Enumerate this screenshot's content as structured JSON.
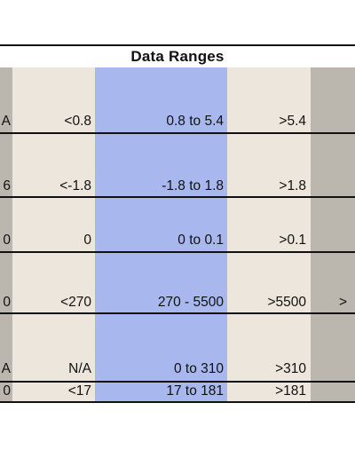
{
  "title": "Data Ranges",
  "colors": {
    "gray": "#bcb7ae",
    "beige": "#ede6dd",
    "blue": "#a8b8ee"
  },
  "rows": [
    {
      "left": "A",
      "low": "<0.8",
      "mid": "0.8 to 5.4",
      "high": ">5.4",
      "right": ""
    },
    {
      "left": "6",
      "low": "<-1.8",
      "mid": "-1.8 to 1.8",
      "high": ">1.8",
      "right": ""
    },
    {
      "left": "0",
      "low": "0",
      "mid": "0 to 0.1",
      "high": ">0.1",
      "right": ""
    },
    {
      "left": "0",
      "low": "<270",
      "mid": "270 - 5500",
      "high": ">5500",
      "right": ">"
    },
    {
      "left": "A",
      "low": "N/A",
      "mid": "0 to 310",
      "high": ">310",
      "right": ""
    },
    {
      "left": "0",
      "low": "<17",
      "mid": "17 to 181",
      "high": ">181",
      "right": ""
    }
  ]
}
